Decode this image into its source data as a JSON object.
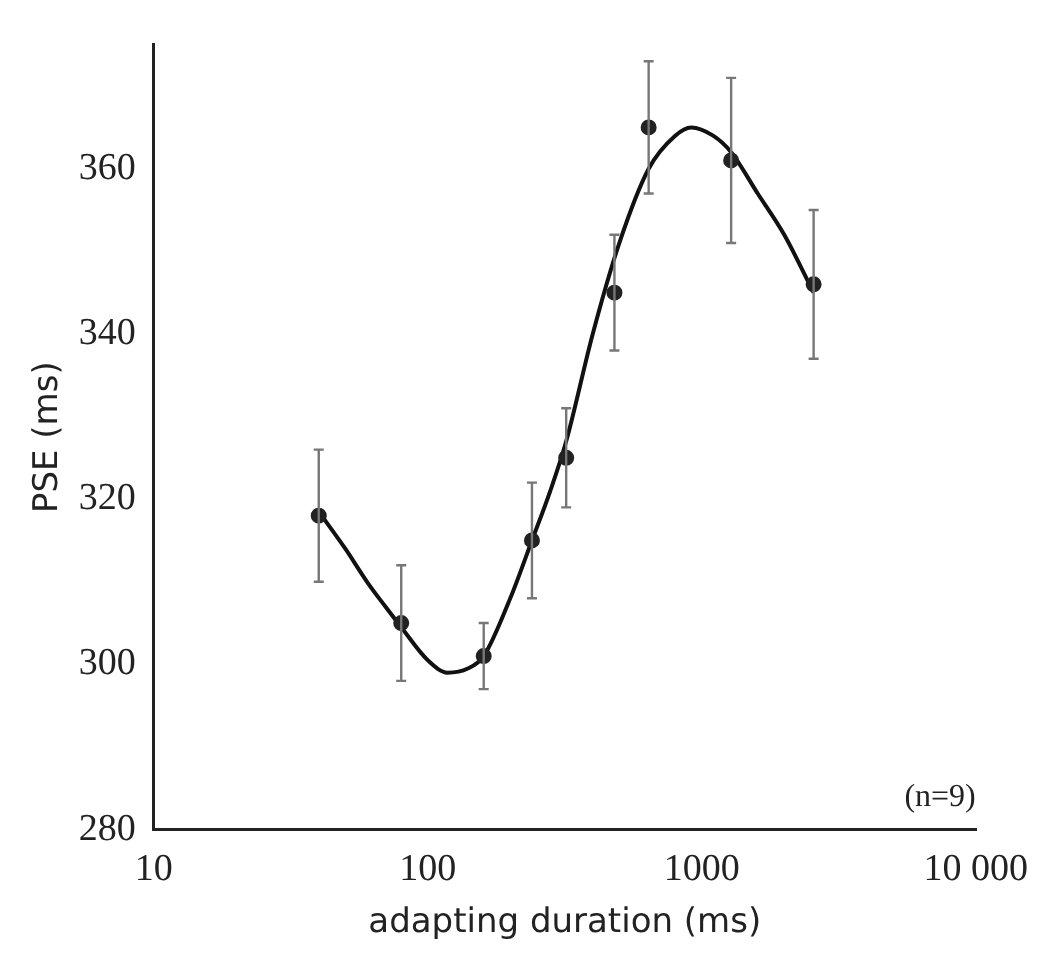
{
  "chart_data": {
    "type": "scatter",
    "xlabel": "adapting duration (ms)",
    "ylabel": "PSE (ms)",
    "log": "x",
    "xlim": [
      10,
      10000
    ],
    "xticks": [
      10,
      100,
      1000,
      {
        "value": 10000,
        "label": "10 000"
      }
    ],
    "ylim": [
      280,
      375
    ],
    "yticks": [
      280,
      300,
      320,
      340,
      360
    ],
    "grid": false,
    "legend": false,
    "marker": "circle",
    "annotations": [
      "(n=9)"
    ],
    "series": [
      {
        "color": "#222222",
        "x": [
          40,
          80,
          160,
          240,
          320,
          480,
          640,
          1280,
          2560
        ],
        "values": [
          318,
          305,
          301,
          315,
          325,
          345,
          365,
          361,
          346
        ],
        "errors": [
          8,
          7,
          4,
          7,
          6,
          7,
          8,
          10,
          9
        ]
      },
      {
        "type": "line",
        "color": "#111111",
        "marker": "none",
        "line_style": "solid",
        "x": [
          40,
          50,
          60,
          70,
          80,
          100,
          118,
          140,
          160,
          200,
          240,
          280,
          320,
          400,
          500,
          640,
          800,
          915,
          1100,
          1280,
          1600,
          2000,
          2560
        ],
        "values": [
          318.5,
          314,
          310,
          307,
          304.5,
          300.5,
          299,
          299.5,
          301,
          308,
          315,
          321,
          327,
          340,
          351,
          360,
          364,
          365,
          364,
          362,
          357,
          352,
          345
        ]
      }
    ]
  }
}
